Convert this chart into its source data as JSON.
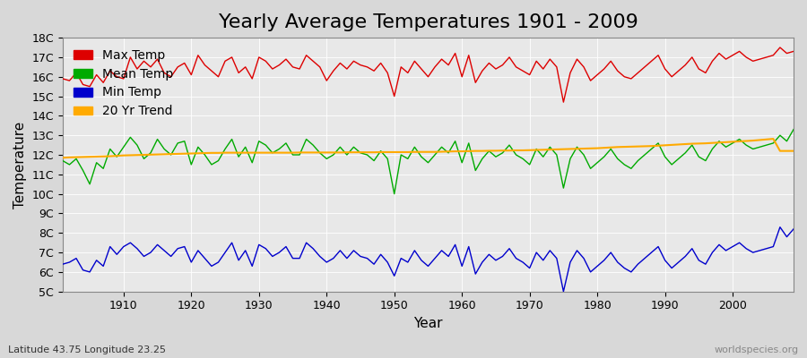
{
  "title": "Yearly Average Temperatures 1901 - 2009",
  "xlabel": "Year",
  "ylabel": "Temperature",
  "lat_lon_label": "Latitude 43.75 Longitude 23.25",
  "watermark": "worldspecies.org",
  "ylim": [
    5,
    18
  ],
  "yticks": [
    5,
    6,
    7,
    8,
    9,
    10,
    11,
    12,
    13,
    14,
    15,
    16,
    17,
    18
  ],
  "ytick_labels": [
    "5C",
    "6C",
    "7C",
    "8C",
    "9C",
    "10C",
    "11C",
    "12C",
    "13C",
    "14C",
    "15C",
    "16C",
    "17C",
    "18C"
  ],
  "xlim": [
    1901,
    2009
  ],
  "xticks": [
    1910,
    1920,
    1930,
    1940,
    1950,
    1960,
    1970,
    1980,
    1990,
    2000
  ],
  "max_temp_color": "#dd0000",
  "mean_temp_color": "#00aa00",
  "min_temp_color": "#0000cc",
  "trend_color": "#ffaa00",
  "background_color": "#e8e8e8",
  "plot_bg_color": "#e8e8e8",
  "grid_color": "#ffffff",
  "title_fontsize": 16,
  "axis_label_fontsize": 11,
  "tick_fontsize": 9,
  "legend_fontsize": 10,
  "years": [
    1901,
    1902,
    1903,
    1904,
    1905,
    1906,
    1907,
    1908,
    1909,
    1910,
    1911,
    1912,
    1913,
    1914,
    1915,
    1916,
    1917,
    1918,
    1919,
    1920,
    1921,
    1922,
    1923,
    1924,
    1925,
    1926,
    1927,
    1928,
    1929,
    1930,
    1931,
    1932,
    1933,
    1934,
    1935,
    1936,
    1937,
    1938,
    1939,
    1940,
    1941,
    1942,
    1943,
    1944,
    1945,
    1946,
    1947,
    1948,
    1949,
    1950,
    1951,
    1952,
    1953,
    1954,
    1955,
    1956,
    1957,
    1958,
    1959,
    1960,
    1961,
    1962,
    1963,
    1964,
    1965,
    1966,
    1967,
    1968,
    1969,
    1970,
    1971,
    1972,
    1973,
    1974,
    1975,
    1976,
    1977,
    1978,
    1979,
    1980,
    1981,
    1982,
    1983,
    1984,
    1985,
    1986,
    1987,
    1988,
    1989,
    1990,
    1991,
    1992,
    1993,
    1994,
    1995,
    1996,
    1997,
    1998,
    1999,
    2000,
    2001,
    2002,
    2003,
    2004,
    2005,
    2006,
    2007,
    2008,
    2009
  ],
  "max_temp": [
    15.9,
    15.8,
    16.2,
    15.6,
    15.5,
    16.1,
    15.7,
    16.3,
    16.0,
    15.9,
    17.0,
    16.4,
    16.8,
    16.5,
    16.9,
    16.2,
    16.0,
    16.5,
    16.7,
    16.1,
    17.1,
    16.6,
    16.3,
    16.0,
    16.8,
    17.0,
    16.2,
    16.5,
    15.9,
    17.0,
    16.8,
    16.4,
    16.6,
    16.9,
    16.5,
    16.4,
    17.1,
    16.8,
    16.5,
    15.8,
    16.3,
    16.7,
    16.4,
    16.8,
    16.6,
    16.5,
    16.3,
    16.7,
    16.2,
    15.0,
    16.5,
    16.2,
    16.8,
    16.4,
    16.0,
    16.5,
    16.9,
    16.6,
    17.2,
    16.0,
    17.1,
    15.7,
    16.3,
    16.7,
    16.4,
    16.6,
    17.0,
    16.5,
    16.3,
    16.1,
    16.8,
    16.4,
    16.9,
    16.5,
    14.7,
    16.2,
    16.9,
    16.5,
    15.8,
    16.1,
    16.4,
    16.8,
    16.3,
    16.0,
    15.9,
    16.2,
    16.5,
    16.8,
    17.1,
    16.4,
    16.0,
    16.3,
    16.6,
    17.0,
    16.4,
    16.2,
    16.8,
    17.2,
    16.9,
    17.1,
    17.3,
    17.0,
    16.8,
    16.9,
    17.0,
    17.1,
    17.5,
    17.2,
    17.3
  ],
  "mean_temp": [
    11.7,
    11.5,
    11.8,
    11.2,
    10.5,
    11.6,
    11.3,
    12.3,
    11.9,
    12.4,
    12.9,
    12.5,
    11.8,
    12.1,
    12.8,
    12.3,
    12.0,
    12.6,
    12.7,
    11.5,
    12.4,
    12.0,
    11.5,
    11.7,
    12.3,
    12.8,
    11.9,
    12.4,
    11.6,
    12.7,
    12.5,
    12.1,
    12.3,
    12.6,
    12.0,
    12.0,
    12.8,
    12.5,
    12.1,
    11.8,
    12.0,
    12.4,
    12.0,
    12.4,
    12.1,
    12.0,
    11.7,
    12.2,
    11.8,
    10.0,
    12.0,
    11.8,
    12.4,
    11.9,
    11.6,
    12.0,
    12.4,
    12.1,
    12.7,
    11.6,
    12.6,
    11.2,
    11.8,
    12.2,
    11.9,
    12.1,
    12.5,
    12.0,
    11.8,
    11.5,
    12.3,
    11.9,
    12.4,
    12.0,
    10.3,
    11.8,
    12.4,
    12.0,
    11.3,
    11.6,
    11.9,
    12.3,
    11.8,
    11.5,
    11.3,
    11.7,
    12.0,
    12.3,
    12.6,
    11.9,
    11.5,
    11.8,
    12.1,
    12.5,
    11.9,
    11.7,
    12.3,
    12.7,
    12.4,
    12.6,
    12.8,
    12.5,
    12.3,
    12.4,
    12.5,
    12.6,
    13.0,
    12.7,
    13.3
  ],
  "min_temp": [
    6.4,
    6.5,
    6.7,
    6.1,
    6.0,
    6.6,
    6.3,
    7.3,
    6.9,
    7.3,
    7.5,
    7.2,
    6.8,
    7.0,
    7.4,
    7.1,
    6.8,
    7.2,
    7.3,
    6.5,
    7.1,
    6.7,
    6.3,
    6.5,
    7.0,
    7.5,
    6.6,
    7.1,
    6.3,
    7.4,
    7.2,
    6.8,
    7.0,
    7.3,
    6.7,
    6.7,
    7.5,
    7.2,
    6.8,
    6.5,
    6.7,
    7.1,
    6.7,
    7.1,
    6.8,
    6.7,
    6.4,
    6.9,
    6.5,
    5.8,
    6.7,
    6.5,
    7.1,
    6.6,
    6.3,
    6.7,
    7.1,
    6.8,
    7.4,
    6.3,
    7.3,
    5.9,
    6.5,
    6.9,
    6.6,
    6.8,
    7.2,
    6.7,
    6.5,
    6.2,
    7.0,
    6.6,
    7.1,
    6.7,
    5.0,
    6.5,
    7.1,
    6.7,
    6.0,
    6.3,
    6.6,
    7.0,
    6.5,
    6.2,
    6.0,
    6.4,
    6.7,
    7.0,
    7.3,
    6.6,
    6.2,
    6.5,
    6.8,
    7.2,
    6.6,
    6.4,
    7.0,
    7.4,
    7.1,
    7.3,
    7.5,
    7.2,
    7.0,
    7.1,
    7.2,
    7.3,
    8.3,
    7.8,
    8.2
  ],
  "trend": [
    11.85,
    11.87,
    11.88,
    11.89,
    11.9,
    11.91,
    11.92,
    11.93,
    11.95,
    11.97,
    11.98,
    11.99,
    12.0,
    12.01,
    12.02,
    12.03,
    12.04,
    12.05,
    12.06,
    12.07,
    12.08,
    12.09,
    12.1,
    12.1,
    12.11,
    12.11,
    12.11,
    12.11,
    12.11,
    12.11,
    12.11,
    12.11,
    12.11,
    12.11,
    12.11,
    12.12,
    12.12,
    12.12,
    12.12,
    12.12,
    12.12,
    12.12,
    12.13,
    12.13,
    12.13,
    12.13,
    12.13,
    12.14,
    12.14,
    12.14,
    12.14,
    12.14,
    12.15,
    12.15,
    12.15,
    12.15,
    12.16,
    12.17,
    12.18,
    12.18,
    12.19,
    12.2,
    12.2,
    12.21,
    12.21,
    12.22,
    12.22,
    12.23,
    12.23,
    12.24,
    12.25,
    12.26,
    12.27,
    12.28,
    12.29,
    12.3,
    12.31,
    12.32,
    12.33,
    12.34,
    12.36,
    12.38,
    12.4,
    12.41,
    12.42,
    12.43,
    12.44,
    12.45,
    12.47,
    12.49,
    12.51,
    12.53,
    12.55,
    12.57,
    12.58,
    12.59,
    12.61,
    12.63,
    12.65,
    12.67,
    12.69,
    12.71,
    12.73,
    12.76,
    12.79,
    12.82,
    12.2,
    12.2,
    12.2
  ]
}
